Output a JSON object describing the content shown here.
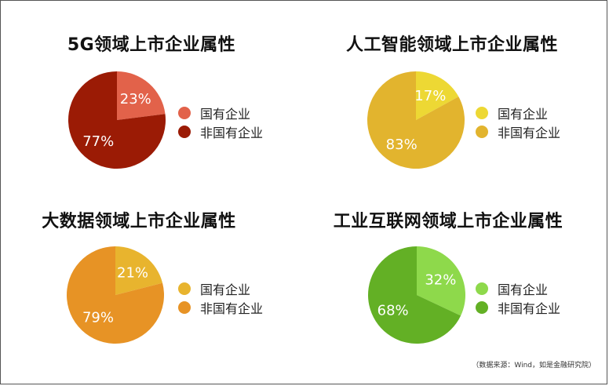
{
  "chart_data": [
    {
      "type": "pie",
      "title": "5G领域上市企业属性",
      "labels": [
        "国有企业",
        "非国有企业"
      ],
      "values": [
        23,
        77
      ],
      "value_labels": [
        "23%",
        "77%"
      ],
      "colors": [
        "#E2624A",
        "#9B1B05"
      ],
      "legend": "right"
    },
    {
      "type": "pie",
      "title": "人工智能领域上市企业属性",
      "labels": [
        "国有企业",
        "非国有企业"
      ],
      "values": [
        17,
        83
      ],
      "value_labels": [
        "17%",
        "83%"
      ],
      "colors": [
        "#EDD834",
        "#E2B42E"
      ],
      "legend": "right"
    },
    {
      "type": "pie",
      "title": "大数据领域上市企业属性",
      "labels": [
        "国有企业",
        "非国有企业"
      ],
      "values": [
        21,
        79
      ],
      "value_labels": [
        "21%",
        "79%"
      ],
      "colors": [
        "#E8B42E",
        "#E79325"
      ],
      "legend": "right"
    },
    {
      "type": "pie",
      "title": "工业互联网领域上市企业属性",
      "labels": [
        "国有企业",
        "非国有企业"
      ],
      "values": [
        32,
        68
      ],
      "value_labels": [
        "32%",
        "68%"
      ],
      "colors": [
        "#8ED94B",
        "#63B025"
      ],
      "legend": "right"
    }
  ],
  "source_note": "（数据来源：Wind，如是金融研究院）"
}
